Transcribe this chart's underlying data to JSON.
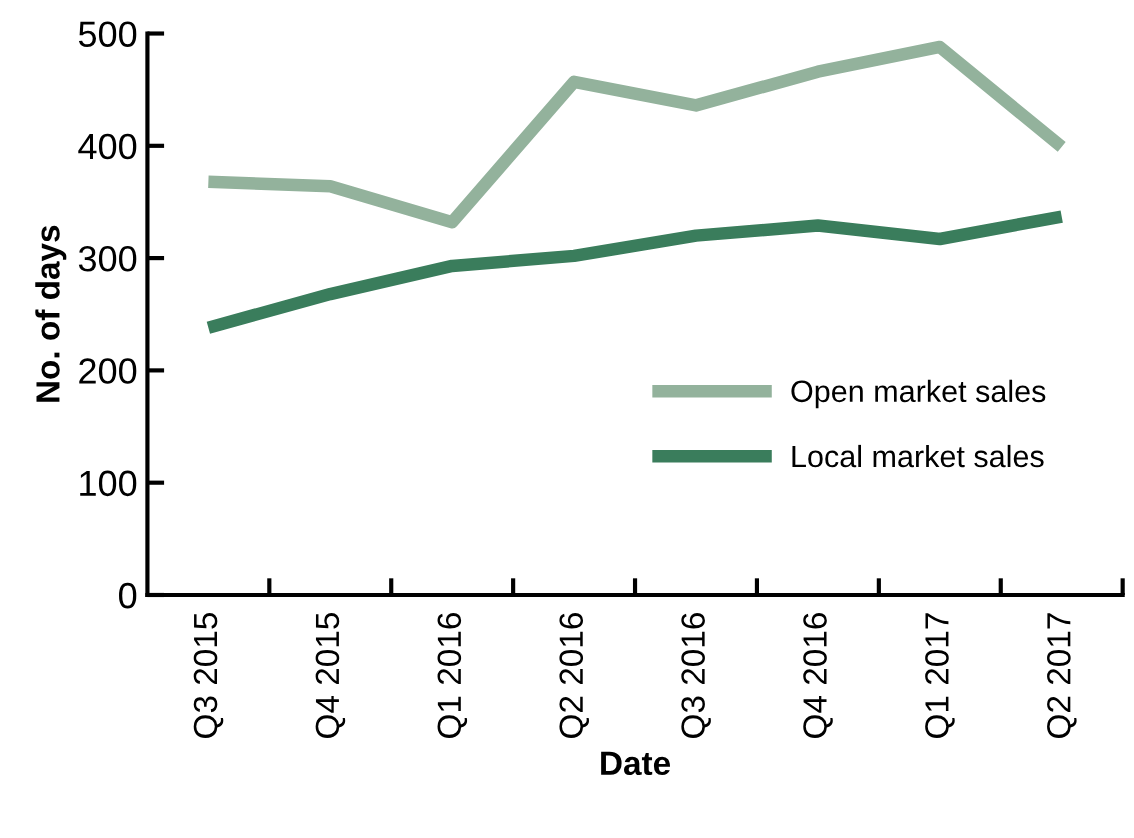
{
  "chart_data": {
    "type": "line",
    "xlabel": "Date",
    "ylabel": "No. of days",
    "categories": [
      "Q3 2015",
      "Q4 2015",
      "Q1 2016",
      "Q2 2016",
      "Q3 2016",
      "Q4 2016",
      "Q1 2017",
      "Q2 2017"
    ],
    "series": [
      {
        "name": "Open market sales",
        "color": "#93b29c",
        "values": [
          368,
          364,
          332,
          457,
          436,
          466,
          488,
          399
        ]
      },
      {
        "name": "Local market sales",
        "color": "#3a7d5c",
        "values": [
          238,
          268,
          293,
          302,
          320,
          329,
          317,
          337
        ]
      }
    ],
    "ylim": [
      0,
      500
    ],
    "yticks": [
      0,
      100,
      200,
      300,
      400,
      500
    ],
    "grid": false,
    "legend": "right",
    "marker": "none",
    "line_style": "solid"
  }
}
